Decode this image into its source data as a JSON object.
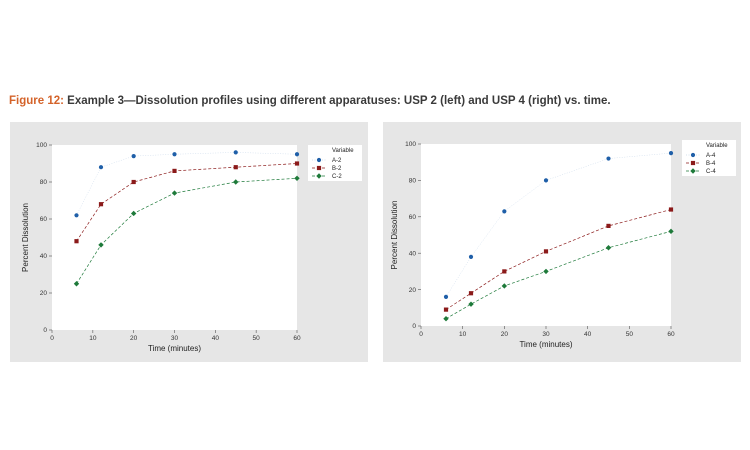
{
  "caption": {
    "figure_label": "Figure 12:",
    "text": " Example 3—Dissolution profiles using different apparatuses: USP 2 (left) and USP 4 (right) vs. time."
  },
  "colors": {
    "caption_label": "#d4632a",
    "series_A": "#1f5fa8",
    "series_B": "#8b1a1a",
    "series_C": "#1e7a3a",
    "panel_background": "#e6e6e6"
  },
  "chart_data": [
    {
      "type": "line",
      "panel": "USP 2 (left)",
      "xlabel": "Time (minutes)",
      "ylabel": "Percent Dissolution",
      "xlim": [
        0,
        60
      ],
      "ylim": [
        0,
        100
      ],
      "xticks": [
        0,
        10,
        20,
        30,
        40,
        50,
        60
      ],
      "yticks": [
        0,
        20,
        40,
        60,
        80,
        100
      ],
      "grid": false,
      "legend_title": "Variable",
      "legend_position": "right",
      "x": [
        6,
        12,
        20,
        30,
        45,
        60
      ],
      "series": [
        {
          "name": "A-2",
          "values": [
            62,
            88,
            94,
            95,
            96,
            95
          ],
          "marker": "circle",
          "line": "dotted"
        },
        {
          "name": "B-2",
          "values": [
            48,
            68,
            80,
            86,
            88,
            90
          ],
          "marker": "square",
          "line": "dashed"
        },
        {
          "name": "C-2",
          "values": [
            25,
            46,
            63,
            74,
            80,
            82
          ],
          "marker": "diamond",
          "line": "dashed"
        }
      ]
    },
    {
      "type": "line",
      "panel": "USP 4 (right)",
      "xlabel": "Time (minutes)",
      "ylabel": "Percent Dissolution",
      "xlim": [
        0,
        60
      ],
      "ylim": [
        0,
        100
      ],
      "xticks": [
        0,
        10,
        20,
        30,
        40,
        50,
        60
      ],
      "yticks": [
        0,
        20,
        40,
        60,
        80,
        100
      ],
      "grid": false,
      "legend_title": "Variable",
      "legend_position": "right",
      "x": [
        6,
        12,
        20,
        30,
        45,
        60
      ],
      "series": [
        {
          "name": "A-4",
          "values": [
            16,
            38,
            63,
            80,
            92,
            95
          ],
          "marker": "circle",
          "line": "dotted"
        },
        {
          "name": "B-4",
          "values": [
            9,
            18,
            30,
            41,
            55,
            64
          ],
          "marker": "square",
          "line": "dashed"
        },
        {
          "name": "C-4",
          "values": [
            4,
            12,
            22,
            30,
            43,
            52
          ],
          "marker": "diamond",
          "line": "dashed"
        }
      ]
    }
  ]
}
